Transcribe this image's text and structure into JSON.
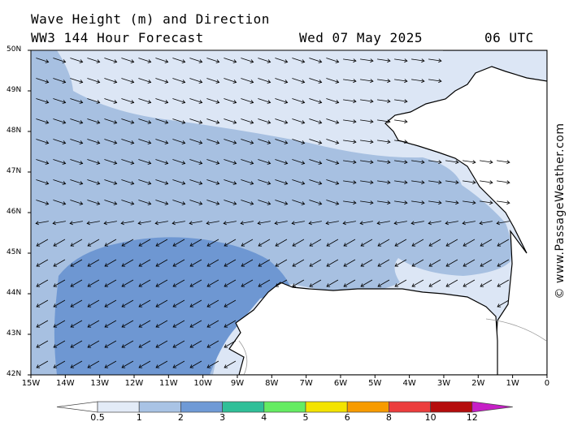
{
  "header": {
    "title": "Wave Height (m) and Direction",
    "model": "WW3 144 Hour Forecast",
    "date": "Wed 07 May 2025",
    "time": "06 UTC"
  },
  "watermark": "© www.PassageWeather.com",
  "axes": {
    "lat_labels": [
      "50N",
      "49N",
      "48N",
      "47N",
      "46N",
      "45N",
      "44N",
      "43N",
      "42N"
    ],
    "lon_labels": [
      "15W",
      "14W",
      "13W",
      "12W",
      "11W",
      "10W",
      "9W",
      "8W",
      "7W",
      "6W",
      "5W",
      "4W",
      "3W",
      "2W",
      "1W",
      "0"
    ]
  },
  "legend": {
    "labels": [
      "0.5",
      "1",
      "2",
      "3",
      "4",
      "5",
      "6",
      "8",
      "10",
      "12"
    ],
    "colors": [
      "#e3ebf7",
      "#a9c3e5",
      "#6f9ad6",
      "#2fbf98",
      "#64ec62",
      "#f3e300",
      "#f79b00",
      "#ec3d3d",
      "#b50c0c",
      "#c61fc6"
    ]
  },
  "colors": {
    "band_lt1": "#dce6f5",
    "band_1_2": "#a7c0e1",
    "band_2_3": "#6e97d2",
    "land": "#ffffff",
    "coast": "#000000",
    "border": "#999999"
  },
  "chart_data": {
    "type": "heatmap",
    "title": "Wave Height (m) and Direction",
    "field": "significant wave height with mean wave direction arrows",
    "units": "m",
    "lat_range": [
      42,
      50
    ],
    "lon_range": [
      -15,
      0
    ],
    "color_scale": [
      0.5,
      1,
      2,
      3,
      4,
      5,
      6,
      8,
      10,
      12
    ],
    "regions": [
      {
        "range_m": "0.5-1",
        "area": "northern strip near 49.5N-50N, Bay of Biscay coasts, near-shore French and Spanish coasts"
      },
      {
        "range_m": "1-2",
        "area": "central Bay of Biscay and open Atlantic between 45N and 49N"
      },
      {
        "range_m": "2-3",
        "area": "southwest, roughly 42N-45N and 15W-8W"
      }
    ],
    "arrow_direction": {
      "north_of_46N": "toward east-southeast",
      "south_of_45N": "toward southwest"
    }
  }
}
